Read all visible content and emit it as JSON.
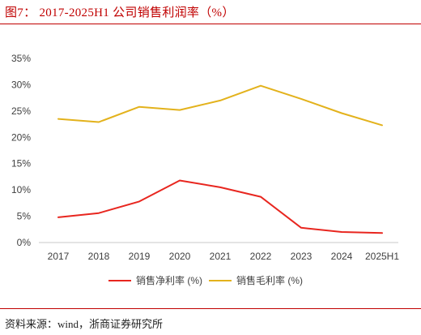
{
  "header": {
    "title": "图7： 2017-2025H1 公司销售利润率（%）"
  },
  "footer": {
    "source": "资料来源：wind，浙商证券研究所"
  },
  "chart_data": {
    "type": "line",
    "title": "图7： 2017-2025H1 公司销售利润率（%）",
    "xlabel": "",
    "ylabel": "",
    "categories": [
      "2017",
      "2018",
      "2019",
      "2020",
      "2021",
      "2022",
      "2023",
      "2024",
      "2025H1"
    ],
    "y_ticks": [
      "0%",
      "5%",
      "10%",
      "15%",
      "20%",
      "25%",
      "30%",
      "35%"
    ],
    "ylim": [
      0,
      35
    ],
    "grid": false,
    "legend_position": "bottom",
    "series": [
      {
        "name": "销售净利率 (%)",
        "color": "#e8261f",
        "values": [
          4.8,
          5.6,
          7.8,
          11.8,
          10.5,
          8.7,
          2.8,
          2.0,
          1.8
        ]
      },
      {
        "name": "销售毛利率 (%)",
        "color": "#e3b21c",
        "values": [
          23.5,
          22.9,
          25.8,
          25.2,
          27.0,
          29.8,
          27.3,
          24.6,
          22.3
        ]
      }
    ]
  }
}
